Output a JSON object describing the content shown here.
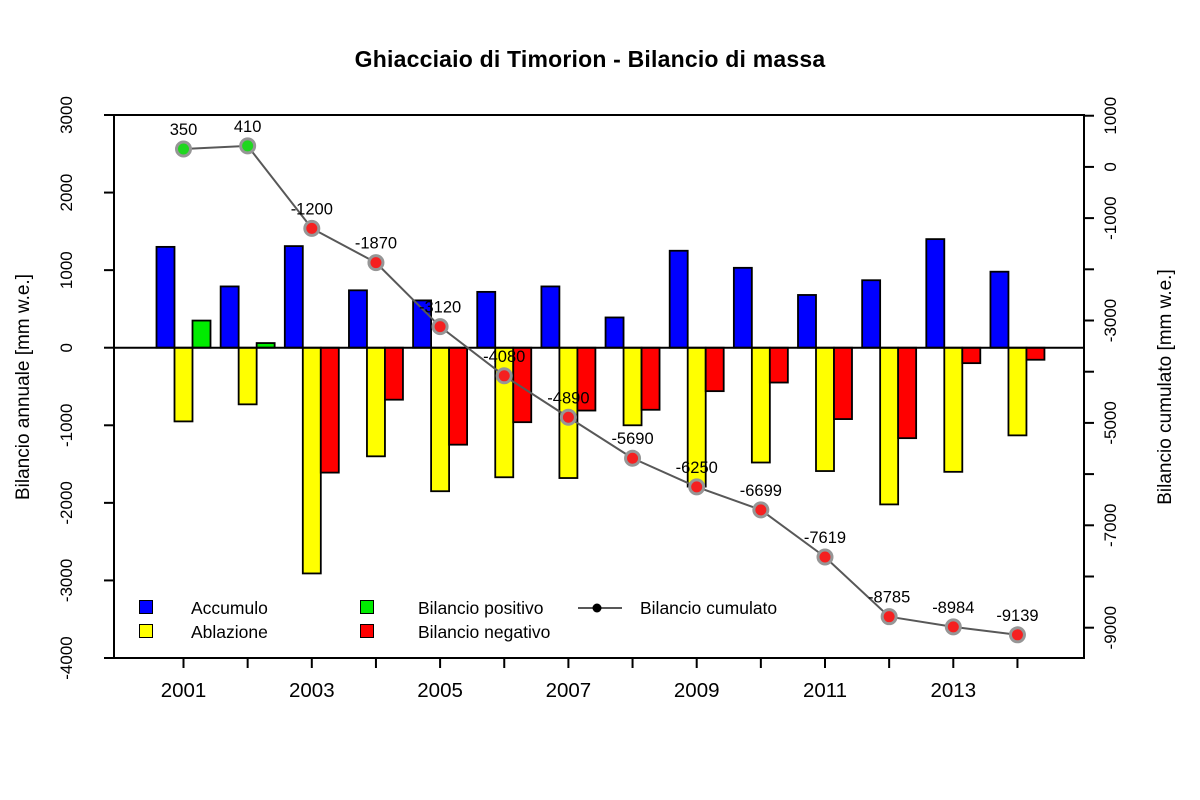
{
  "title": "Ghiacciaio di Timorion - Bilancio di massa",
  "chart_data": {
    "type": "bar",
    "title": "Ghiacciaio di Timorion - Bilancio di massa",
    "categories": [
      2001,
      2002,
      2003,
      2004,
      2005,
      2006,
      2007,
      2008,
      2009,
      2010,
      2011,
      2012,
      2013,
      2014
    ],
    "series": [
      {
        "name": "Accumulo",
        "type": "bar",
        "values": [
          1300,
          790,
          1310,
          740,
          610,
          720,
          790,
          390,
          1250,
          1030,
          680,
          870,
          1400,
          980
        ]
      },
      {
        "name": "Ablazione",
        "type": "bar",
        "values": [
          -950,
          -730,
          -2910,
          -1400,
          -1850,
          -1670,
          -1680,
          -1000,
          -1790,
          -1480,
          -1590,
          -2020,
          -1600,
          -1130
        ]
      },
      {
        "name": "Bilancio annuale",
        "type": "bar",
        "values": [
          350,
          60,
          -1610,
          -670,
          -1250,
          -960,
          -810,
          -800,
          -560,
          -449,
          -920,
          -1166,
          -199,
          -155
        ]
      },
      {
        "name": "Bilancio cumulato",
        "type": "line",
        "values": [
          350,
          410,
          -1200,
          -1870,
          -3120,
          -4080,
          -4890,
          -5690,
          -6250,
          -6699,
          -7619,
          -8785,
          -8984,
          -9139
        ],
        "point_labels": [
          "350",
          "410",
          "-1200",
          "-1870",
          "-3120",
          "-4080",
          "-4890",
          "-5690",
          "-6250",
          "-6699",
          "-7619",
          "-8785",
          "-8984",
          "-9139"
        ]
      }
    ],
    "left_axis": {
      "label": "Bilancio annuale [mm w.e.]",
      "ticks": [
        3000,
        2000,
        1000,
        0,
        -1000,
        -2000,
        -3000,
        -4000
      ],
      "range": [
        3000,
        -4000
      ]
    },
    "right_axis": {
      "label": "Bilancio cumulato [mm w.e.]",
      "labeled_ticks": [
        1000,
        0,
        -1000,
        -3000,
        -5000,
        -7000,
        -9000
      ],
      "unlabeled_ticks": [
        -2000,
        -4000,
        -6000,
        -8000
      ],
      "range": [
        1014,
        -9592
      ]
    },
    "x_axis": {
      "labeled_years": [
        2001,
        2003,
        2005,
        2007,
        2009,
        2011,
        2013
      ]
    },
    "grid": false,
    "legend_position": "bottom-left-inside"
  },
  "legend": {
    "items": [
      {
        "label": "Accumulo",
        "swatch": "accumulo"
      },
      {
        "label": "Ablazione",
        "swatch": "ablazione"
      },
      {
        "label": "Bilancio positivo",
        "swatch": "positivo"
      },
      {
        "label": "Bilancio negativo",
        "swatch": "negativo"
      },
      {
        "label": "Bilancio cumulato",
        "swatch": "line-dot"
      }
    ]
  },
  "colors": {
    "accumulo": "#0000ff",
    "ablazione": "#ffff00",
    "positivo": "#00ec00",
    "negativo": "#ff0000",
    "line": "#585858",
    "point_green": "#1fd71f",
    "point_red": "#f52020",
    "point_ring": "#969696",
    "bar_border": "#000000",
    "axis": "#000000"
  }
}
